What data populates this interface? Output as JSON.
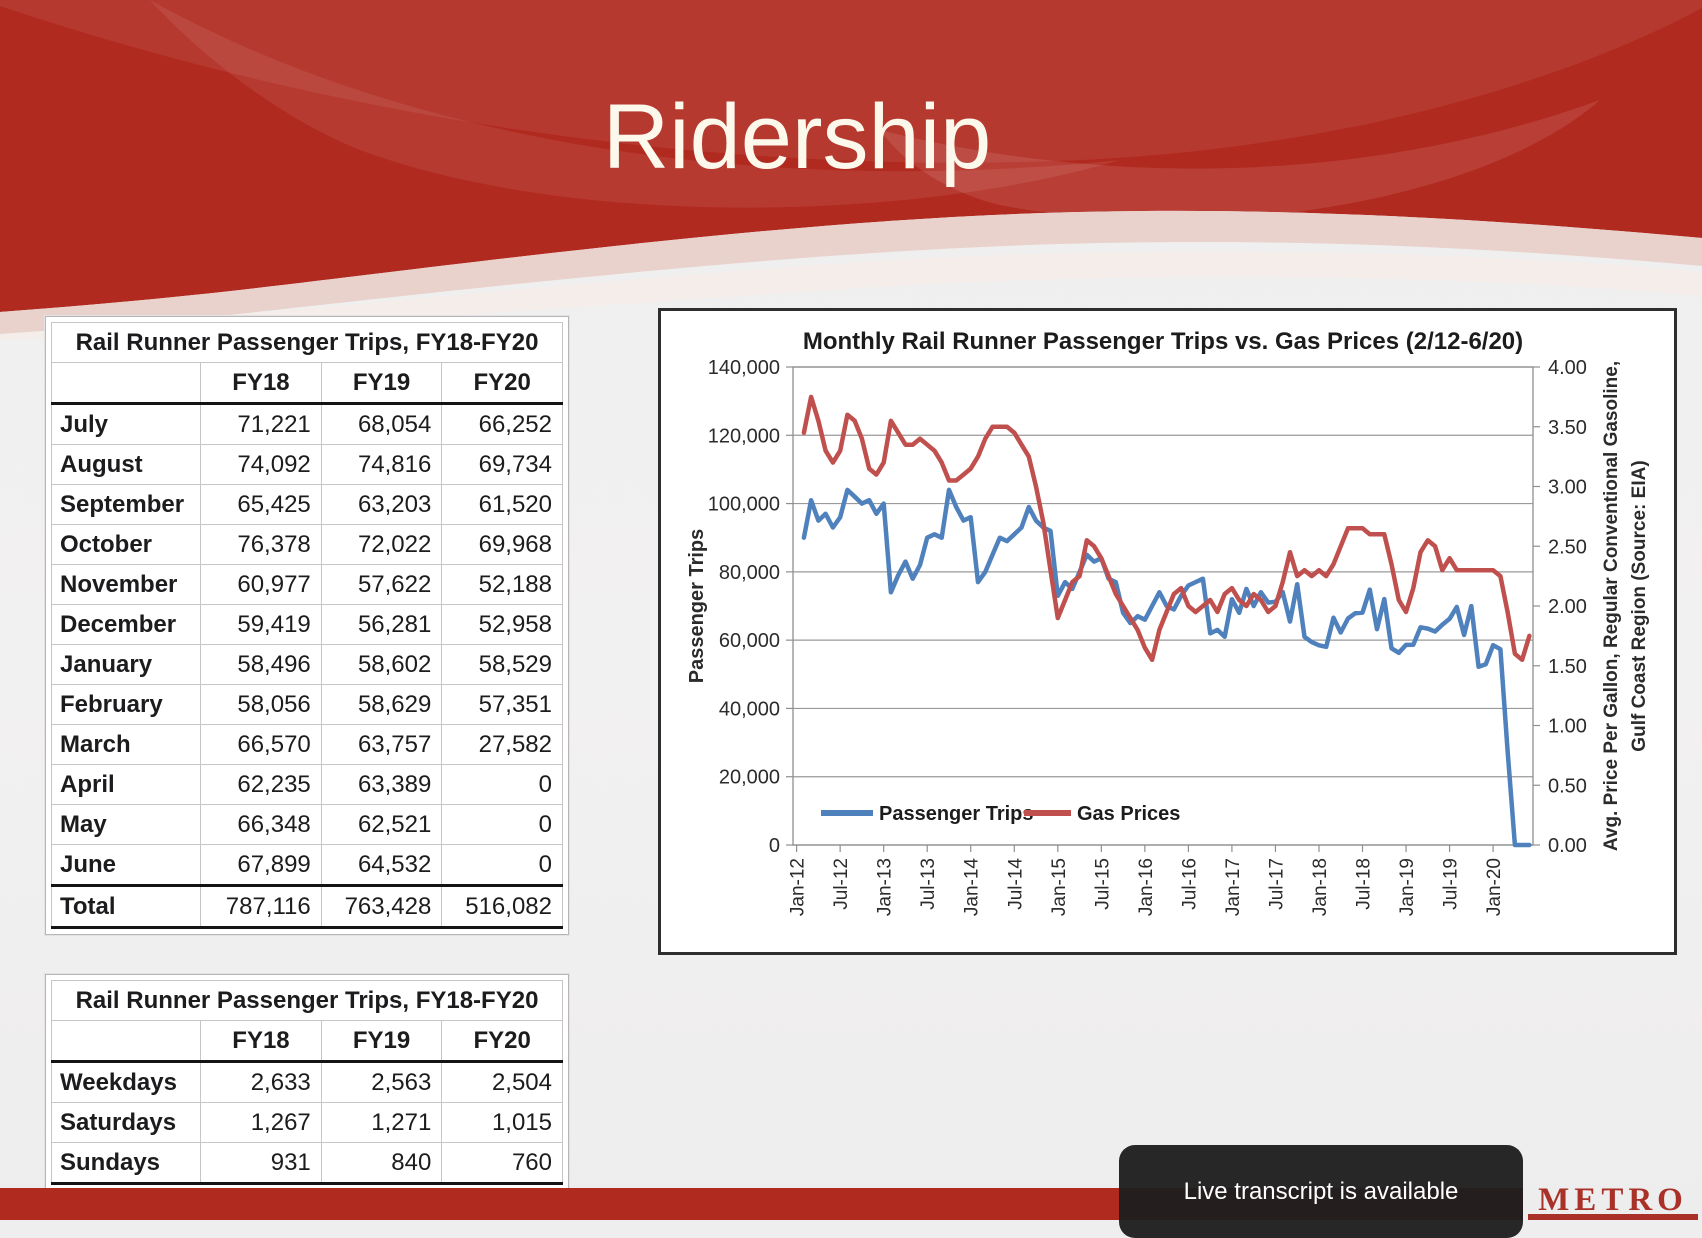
{
  "slide": {
    "title": "Ridership"
  },
  "tables": {
    "monthly": {
      "title": "Rail Runner Passenger Trips, FY18-FY20",
      "columns": [
        "FY18",
        "FY19",
        "FY20"
      ],
      "rows": [
        {
          "label": "July",
          "values": [
            "71,221",
            "68,054",
            "66,252"
          ]
        },
        {
          "label": "August",
          "values": [
            "74,092",
            "74,816",
            "69,734"
          ]
        },
        {
          "label": "September",
          "values": [
            "65,425",
            "63,203",
            "61,520"
          ]
        },
        {
          "label": "October",
          "values": [
            "76,378",
            "72,022",
            "69,968"
          ]
        },
        {
          "label": "November",
          "values": [
            "60,977",
            "57,622",
            "52,188"
          ]
        },
        {
          "label": "December",
          "values": [
            "59,419",
            "56,281",
            "52,958"
          ]
        },
        {
          "label": "January",
          "values": [
            "58,496",
            "58,602",
            "58,529"
          ]
        },
        {
          "label": "February",
          "values": [
            "58,056",
            "58,629",
            "57,351"
          ]
        },
        {
          "label": "March",
          "values": [
            "66,570",
            "63,757",
            "27,582"
          ]
        },
        {
          "label": "April",
          "values": [
            "62,235",
            "63,389",
            "0"
          ]
        },
        {
          "label": "May",
          "values": [
            "66,348",
            "62,521",
            "0"
          ]
        },
        {
          "label": "June",
          "values": [
            "67,899",
            "64,532",
            "0"
          ]
        },
        {
          "label": "Total",
          "values": [
            "787,116",
            "763,428",
            "516,082"
          ],
          "total": true
        }
      ]
    },
    "daily": {
      "title": "Rail Runner Passenger Trips, FY18-FY20",
      "columns": [
        "FY18",
        "FY19",
        "FY20"
      ],
      "rows": [
        {
          "label": "Weekdays",
          "values": [
            "2,633",
            "2,563",
            "2,504"
          ]
        },
        {
          "label": "Saturdays",
          "values": [
            "1,267",
            "1,271",
            "1,015"
          ]
        },
        {
          "label": "Sundays",
          "values": [
            "931",
            "840",
            "760"
          ]
        }
      ]
    }
  },
  "chart_data": {
    "type": "line",
    "title": "Monthly Rail Runner Passenger Trips vs. Gas Prices (2/12-6/20)",
    "ylabel_left": "Passenger Trips",
    "ylabel_right_line1": "Avg. Price Per Gallon, Regular Conventional Gasoline,",
    "ylabel_right_line2": "Gulf Coast Region (Source: EIA)",
    "ylim_left": [
      0,
      140000
    ],
    "ylim_right": [
      0,
      4
    ],
    "yticks_left": [
      "0",
      "20,000",
      "40,000",
      "60,000",
      "80,000",
      "100,000",
      "120,000",
      "140,000"
    ],
    "yticks_right": [
      "0.00",
      "0.50",
      "1.00",
      "1.50",
      "2.00",
      "2.50",
      "3.00",
      "3.50",
      "4.00"
    ],
    "x_range_note": "monthly, Jan-12 through Jun-20, data begins Feb-12",
    "n_points": 102,
    "x_tick_labels": [
      "Jan-12",
      "Jul-12",
      "Jan-13",
      "Jul-13",
      "Jan-14",
      "Jul-14",
      "Jan-15",
      "Jul-15",
      "Jan-16",
      "Jul-16",
      "Jan-17",
      "Jul-17",
      "Jan-18",
      "Jul-18",
      "Jan-19",
      "Jul-19",
      "Jan-20"
    ],
    "x_tick_interval": 6,
    "grid": "horizontal",
    "legend_position": "inside-bottom-left",
    "series": [
      {
        "name": "Passenger Trips",
        "axis": "left",
        "color": "#4f81bd",
        "values": [
          null,
          90000,
          101000,
          95000,
          97000,
          93000,
          96000,
          104000,
          102000,
          100000,
          101000,
          97000,
          100000,
          74000,
          79000,
          83000,
          78000,
          82000,
          90000,
          91000,
          90000,
          104000,
          99000,
          95000,
          96000,
          77000,
          80000,
          85000,
          90000,
          89000,
          91000,
          93000,
          99000,
          95000,
          93000,
          92000,
          73000,
          77000,
          75000,
          80000,
          85000,
          83000,
          84000,
          78000,
          77000,
          68000,
          65000,
          67000,
          66000,
          70000,
          74000,
          70000,
          69000,
          73000,
          76000,
          77000,
          78000,
          62000,
          63000,
          61000,
          72000,
          68000,
          75000,
          70000,
          74000,
          71000,
          71221,
          74092,
          65425,
          76378,
          60977,
          59419,
          58496,
          58056,
          66570,
          62235,
          66348,
          67899,
          68054,
          74816,
          63203,
          72022,
          57622,
          56281,
          58602,
          58629,
          63757,
          63389,
          62521,
          64532,
          66252,
          69734,
          61520,
          69968,
          52188,
          52958,
          58529,
          57351,
          27582,
          0,
          0,
          0
        ]
      },
      {
        "name": "Gas Prices",
        "axis": "right",
        "color": "#c0504d",
        "values": [
          null,
          3.45,
          3.75,
          3.55,
          3.3,
          3.2,
          3.3,
          3.6,
          3.55,
          3.4,
          3.15,
          3.1,
          3.2,
          3.55,
          3.45,
          3.35,
          3.35,
          3.4,
          3.35,
          3.3,
          3.2,
          3.05,
          3.05,
          3.1,
          3.15,
          3.25,
          3.4,
          3.5,
          3.5,
          3.5,
          3.45,
          3.35,
          3.25,
          3.0,
          2.7,
          2.3,
          1.9,
          2.05,
          2.2,
          2.25,
          2.55,
          2.5,
          2.4,
          2.25,
          2.1,
          2.0,
          1.9,
          1.8,
          1.65,
          1.55,
          1.8,
          1.95,
          2.1,
          2.15,
          2.0,
          1.95,
          2.0,
          2.05,
          1.95,
          2.1,
          2.15,
          2.05,
          2.0,
          2.1,
          2.05,
          1.95,
          2.0,
          2.2,
          2.45,
          2.25,
          2.3,
          2.25,
          2.3,
          2.25,
          2.35,
          2.5,
          2.65,
          2.65,
          2.65,
          2.6,
          2.6,
          2.6,
          2.35,
          2.05,
          1.95,
          2.15,
          2.45,
          2.55,
          2.5,
          2.3,
          2.4,
          2.3,
          2.3,
          2.3,
          2.3,
          2.3,
          2.3,
          2.25,
          1.95,
          1.6,
          1.55,
          1.75
        ]
      }
    ]
  },
  "toast": {
    "text": "Live transcript is available"
  },
  "logo": {
    "text": "METRO"
  },
  "colors": {
    "header_red": "#b12a20",
    "band_red": "#b02a20",
    "title_text": "#fcf8ec",
    "series_blue": "#4f81bd",
    "series_red": "#c0504d",
    "logo_red": "#a93128"
  }
}
